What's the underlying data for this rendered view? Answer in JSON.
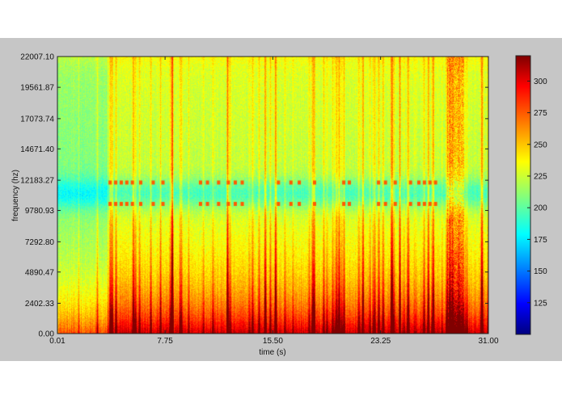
{
  "chart_data": {
    "type": "heatmap",
    "title": "",
    "xlabel": "time (s)",
    "ylabel": "frequency (hz)",
    "xlim": [
      0.01,
      31.0
    ],
    "ylim": [
      0.0,
      22007.1
    ],
    "x_ticks": [
      "0.01",
      "7.75",
      "15.50",
      "23.25",
      "31.00"
    ],
    "y_ticks": [
      "0.00",
      "2402.33",
      "4890.47",
      "7292.80",
      "9780.93",
      "12183.27",
      "14671.40",
      "17073.74",
      "19561.87",
      "22007.10"
    ],
    "colorbar": {
      "colormap": "jet",
      "range": [
        100,
        320
      ],
      "ticks": [
        "125",
        "150",
        "175",
        "200",
        "225",
        "250",
        "275",
        "300"
      ]
    },
    "features": {
      "tone_rows_hz": [
        10300,
        12000
      ],
      "tone_burst_times_s": [
        3.8,
        4.2,
        4.6,
        5.0,
        5.4,
        6.0,
        6.9,
        7.6,
        10.3,
        10.8,
        11.6,
        12.3,
        12.8,
        13.3,
        15.9,
        16.8,
        17.4,
        18.5,
        20.6,
        21.0,
        23.1,
        23.6,
        24.3,
        25.4,
        26.0,
        26.4,
        26.8,
        27.2
      ],
      "broadband_onset_s": 3.6,
      "cool_band_hz": [
        10300,
        12000
      ],
      "noisy_tail_s": [
        28.0,
        29.2
      ]
    },
    "colors": {
      "background": "#c6c6c6",
      "axes_border": "#222222"
    }
  }
}
